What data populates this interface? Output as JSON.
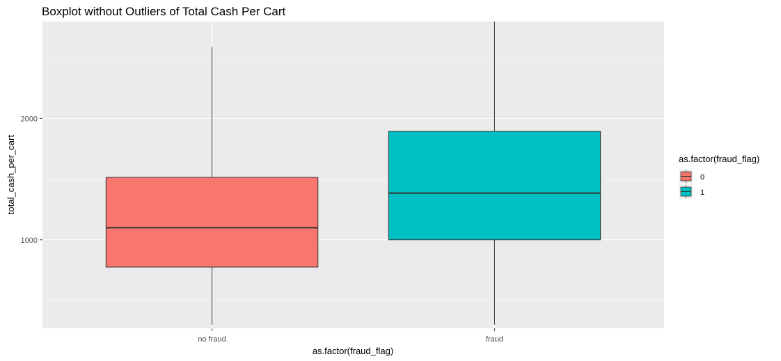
{
  "chart_data": {
    "type": "boxplot",
    "title": "Boxplot without Outliers of Total Cash Per Cart",
    "xlabel": "as.factor(fraud_flag)",
    "ylabel": "total_cash_per_cart",
    "ylim": [
      270,
      2800
    ],
    "y_major_ticks": [
      1000,
      2000
    ],
    "y_minor_gridlines": [
      500,
      1500,
      2500
    ],
    "grid": true,
    "legend": {
      "title": "as.factor(fraud_flag)",
      "position": "right",
      "entries": [
        {
          "label": "0",
          "color": "#F8766D"
        },
        {
          "label": "1",
          "color": "#00BFC4"
        }
      ]
    },
    "categories": [
      "no fraud",
      "fraud"
    ],
    "boxes": [
      {
        "category": "no fraud",
        "fill_group": "0",
        "color": "#F8766D",
        "whisker_low": 300,
        "q1": 775,
        "median": 1100,
        "q3": 1515,
        "whisker_high": 2590
      },
      {
        "category": "fraud",
        "fill_group": "1",
        "color": "#00BFC4",
        "whisker_low": 300,
        "q1": 1000,
        "median": 1385,
        "q3": 1895,
        "whisker_high": 2800
      }
    ]
  }
}
